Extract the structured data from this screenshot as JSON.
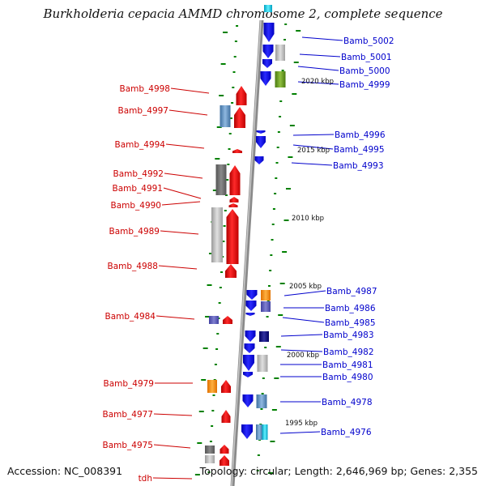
{
  "title": "Burkholderia cepacia AMMD chromosome 2, complete sequence",
  "footer": {
    "accession": "Accession: NC_008391",
    "topology": "Topology: circular; Length: 2,646,969 bp; Genes: 2,355"
  },
  "colors": {
    "forward_gene": "#ff0000",
    "reverse_gene": "#0000ff",
    "backbone": "#888888",
    "ticks": "#008000",
    "left_label": "#cc0000",
    "right_label": "#0000cc"
  },
  "scale_labels": [
    "2020 kbp",
    "2015 kbp",
    "2010 kbp",
    "2005 kbp",
    "2000 kbp",
    "1995 kbp"
  ],
  "left_labels": [
    "Bamb_4998",
    "Bamb_4997",
    "Bamb_4994",
    "Bamb_4992",
    "Bamb_4991",
    "Bamb_4990",
    "Bamb_4989",
    "Bamb_4988",
    "Bamb_4984",
    "Bamb_4979",
    "Bamb_4977",
    "Bamb_4975",
    "tdh"
  ],
  "right_labels": [
    "Bamb_5002",
    "Bamb_5001",
    "Bamb_5000",
    "Bamb_4999",
    "Bamb_4996",
    "Bamb_4995",
    "Bamb_4993",
    "Bamb_4987",
    "Bamb_4986",
    "Bamb_4985",
    "Bamb_4983",
    "Bamb_4982",
    "Bamb_4981",
    "Bamb_4980",
    "Bamb_4978",
    "Bamb_4976"
  ]
}
